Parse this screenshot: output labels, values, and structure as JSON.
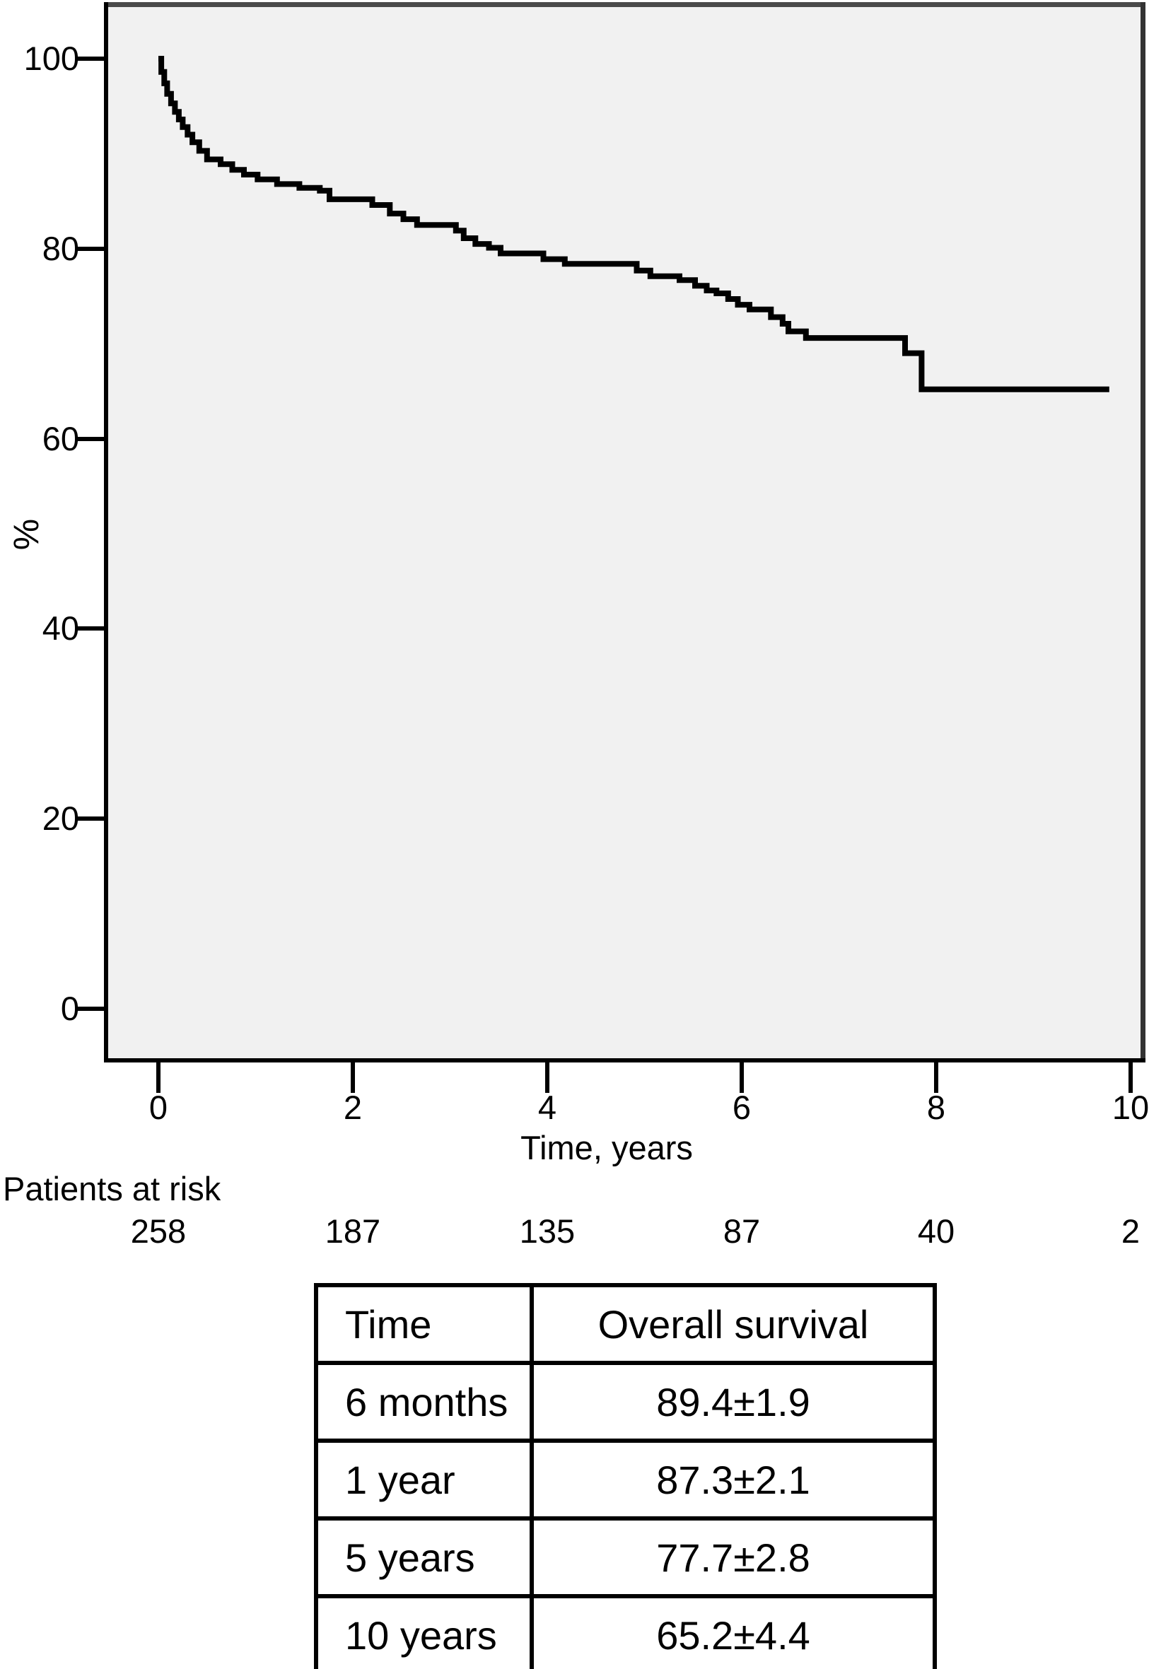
{
  "figure": {
    "background": "#ffffff",
    "plot_background": "#f1f1f1",
    "curve_color": "#000000",
    "frame_top_color": "#4a4a4a",
    "frame_right_color": "#333333"
  },
  "chart_data": {
    "type": "line",
    "subtype": "kaplan-meier-step",
    "title": "",
    "xlabel": "Time, years",
    "ylabel": "%",
    "xlim": [
      0,
      10.2
    ],
    "ylim": [
      0,
      100
    ],
    "x_ticks": [
      0,
      2,
      4,
      6,
      8,
      10
    ],
    "y_ticks": [
      100,
      80,
      60,
      40,
      20,
      0
    ],
    "grid": false,
    "legend_position": "none",
    "series": [
      {
        "name": "Overall survival",
        "steps": [
          [
            0,
            100
          ],
          [
            0.03,
            98.6
          ],
          [
            0.06,
            97.4
          ],
          [
            0.09,
            96.3
          ],
          [
            0.13,
            95.3
          ],
          [
            0.17,
            94.4
          ],
          [
            0.21,
            93.6
          ],
          [
            0.25,
            92.8
          ],
          [
            0.3,
            92.0
          ],
          [
            0.35,
            91.2
          ],
          [
            0.42,
            90.3
          ],
          [
            0.5,
            89.4
          ],
          [
            0.64,
            88.9
          ],
          [
            0.76,
            88.3
          ],
          [
            0.88,
            87.8
          ],
          [
            1.02,
            87.3
          ],
          [
            1.22,
            86.8
          ],
          [
            1.45,
            86.4
          ],
          [
            1.66,
            86.1
          ],
          [
            1.76,
            85.2
          ],
          [
            2.2,
            84.6
          ],
          [
            2.38,
            83.7
          ],
          [
            2.52,
            83.1
          ],
          [
            2.66,
            82.5
          ],
          [
            3.06,
            81.9
          ],
          [
            3.14,
            81.1
          ],
          [
            3.26,
            80.5
          ],
          [
            3.4,
            80.1
          ],
          [
            3.52,
            79.5
          ],
          [
            3.96,
            78.9
          ],
          [
            4.18,
            78.4
          ],
          [
            4.92,
            77.7
          ],
          [
            5.06,
            77.1
          ],
          [
            5.36,
            76.7
          ],
          [
            5.52,
            76.1
          ],
          [
            5.64,
            75.6
          ],
          [
            5.74,
            75.3
          ],
          [
            5.86,
            74.7
          ],
          [
            5.96,
            74.1
          ],
          [
            6.08,
            73.6
          ],
          [
            6.3,
            72.8
          ],
          [
            6.42,
            72.1
          ],
          [
            6.48,
            71.3
          ],
          [
            6.66,
            70.6
          ],
          [
            7.68,
            69.0
          ],
          [
            7.85,
            65.2
          ],
          [
            9.78,
            65.2
          ]
        ]
      }
    ]
  },
  "at_risk": {
    "label": "Patients at risk",
    "times": [
      0,
      2,
      4,
      6,
      8,
      10
    ],
    "counts": [
      "258",
      "187",
      "135",
      "87",
      "40",
      "2"
    ]
  },
  "summary_table": {
    "headers": [
      "Time",
      "Overall survival"
    ],
    "rows": [
      [
        "6 months",
        "89.4±1.9"
      ],
      [
        "1 year",
        "87.3±2.1"
      ],
      [
        "5 years",
        "77.7±2.8"
      ],
      [
        "10 years",
        "65.2±4.4"
      ]
    ]
  }
}
